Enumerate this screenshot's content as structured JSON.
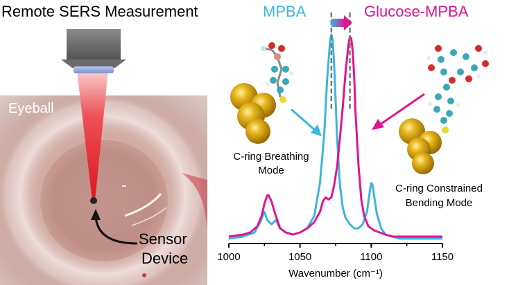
{
  "left_panel": {
    "title": "Remote SERS Measurement",
    "eye_label": "Eyeball",
    "sensor_label_line1": "Sensor",
    "sensor_label_line2": "Device"
  },
  "annotations": {
    "mpba": "MPBA",
    "glucose_mpba": "Glucose-MPBA",
    "breathing_line1": "C-ring Breathing",
    "breathing_line2": "Mode",
    "bending_line1": "C-ring Constrained",
    "bending_line2": "Bending Mode"
  },
  "colors": {
    "mpba": "#3cb4e0",
    "glucose_mpba": "#e0168c",
    "laser": "#e8141e",
    "gold_atom": "#e0b020"
  },
  "chart_data": {
    "type": "line",
    "xlabel": "Wavenumber (cm⁻¹)",
    "ylabel": "",
    "xlim": [
      1000,
      1150
    ],
    "xticks": [
      1000,
      1050,
      1100,
      1150
    ],
    "grid": false,
    "series": [
      {
        "name": "MPBA",
        "color": "#3cb4e0",
        "x": [
          1000,
          1010,
          1018,
          1022,
          1025,
          1027,
          1030,
          1033,
          1036,
          1040,
          1045,
          1050,
          1055,
          1060,
          1064,
          1067,
          1069,
          1071,
          1072,
          1073,
          1074,
          1075,
          1076,
          1078,
          1080,
          1082,
          1085,
          1088,
          1091,
          1094,
          1097,
          1099,
          1100,
          1101,
          1102,
          1104,
          1107,
          1110,
          1115,
          1120,
          1130,
          1140,
          1150
        ],
        "y": [
          0.01,
          0.02,
          0.04,
          0.09,
          0.14,
          0.1,
          0.08,
          0.1,
          0.06,
          0.04,
          0.03,
          0.04,
          0.06,
          0.12,
          0.28,
          0.52,
          0.78,
          0.96,
          1.0,
          0.97,
          0.85,
          0.68,
          0.5,
          0.27,
          0.16,
          0.11,
          0.08,
          0.06,
          0.06,
          0.08,
          0.14,
          0.24,
          0.28,
          0.27,
          0.22,
          0.13,
          0.06,
          0.03,
          0.02,
          0.01,
          0.01,
          0.01,
          0.01
        ]
      },
      {
        "name": "Glucose-MPBA",
        "color": "#e0168c",
        "x": [
          1000,
          1010,
          1015,
          1020,
          1023,
          1025,
          1027,
          1028,
          1030,
          1033,
          1036,
          1040,
          1045,
          1050,
          1055,
          1060,
          1064,
          1066,
          1068,
          1070,
          1072,
          1074,
          1076,
          1078,
          1080,
          1082,
          1084,
          1085,
          1086,
          1087,
          1088,
          1089,
          1091,
          1093,
          1095,
          1098,
          1102,
          1106,
          1110,
          1115,
          1120,
          1130,
          1140,
          1150
        ],
        "y": [
          0.02,
          0.03,
          0.04,
          0.07,
          0.12,
          0.18,
          0.22,
          0.22,
          0.19,
          0.12,
          0.06,
          0.04,
          0.03,
          0.04,
          0.06,
          0.09,
          0.14,
          0.19,
          0.21,
          0.2,
          0.21,
          0.27,
          0.36,
          0.5,
          0.65,
          0.82,
          0.95,
          0.99,
          0.98,
          0.92,
          0.8,
          0.62,
          0.37,
          0.2,
          0.12,
          0.07,
          0.05,
          0.04,
          0.03,
          0.02,
          0.02,
          0.02,
          0.02,
          0.02
        ]
      }
    ]
  }
}
